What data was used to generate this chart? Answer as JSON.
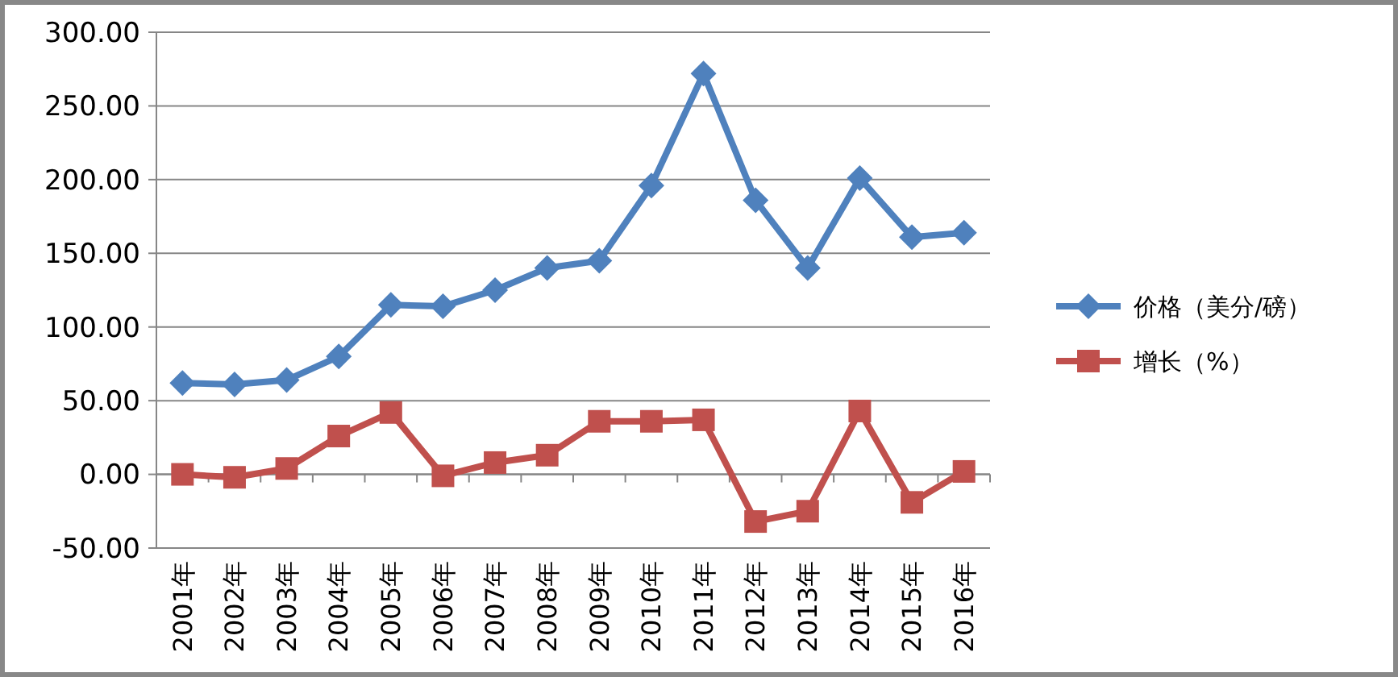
{
  "chart_data": {
    "type": "line",
    "categories": [
      "2001年",
      "2002年",
      "2003年",
      "2004年",
      "2005年",
      "2006年",
      "2007年",
      "2008年",
      "2009年",
      "2010年",
      "2011年",
      "2012年",
      "2013年",
      "2014年",
      "2015年",
      "2016年"
    ],
    "series": [
      {
        "name": "价格（美分/磅）",
        "color": "#4f81bd",
        "marker": "diamond",
        "values": [
          62,
          61,
          64,
          80,
          115,
          114,
          125,
          140,
          145,
          196,
          272,
          186,
          140,
          201,
          161,
          164
        ]
      },
      {
        "name": "增长（%）",
        "color": "#c0504d",
        "marker": "square",
        "values": [
          0,
          -2,
          4,
          26,
          42,
          -1,
          8,
          13,
          36,
          36,
          37,
          -32,
          -25,
          43,
          -19,
          2
        ]
      }
    ],
    "ylim": [
      -50,
      300
    ],
    "yticks": [
      {
        "value": -50,
        "label": "-50.00"
      },
      {
        "value": 0,
        "label": "0.00"
      },
      {
        "value": 50,
        "label": "50.00"
      },
      {
        "value": 100,
        "label": "100.00"
      },
      {
        "value": 150,
        "label": "150.00"
      },
      {
        "value": 200,
        "label": "200.00"
      },
      {
        "value": 250,
        "label": "250.00"
      },
      {
        "value": 300,
        "label": "300.00"
      }
    ],
    "grid": "y",
    "legend": "right"
  }
}
